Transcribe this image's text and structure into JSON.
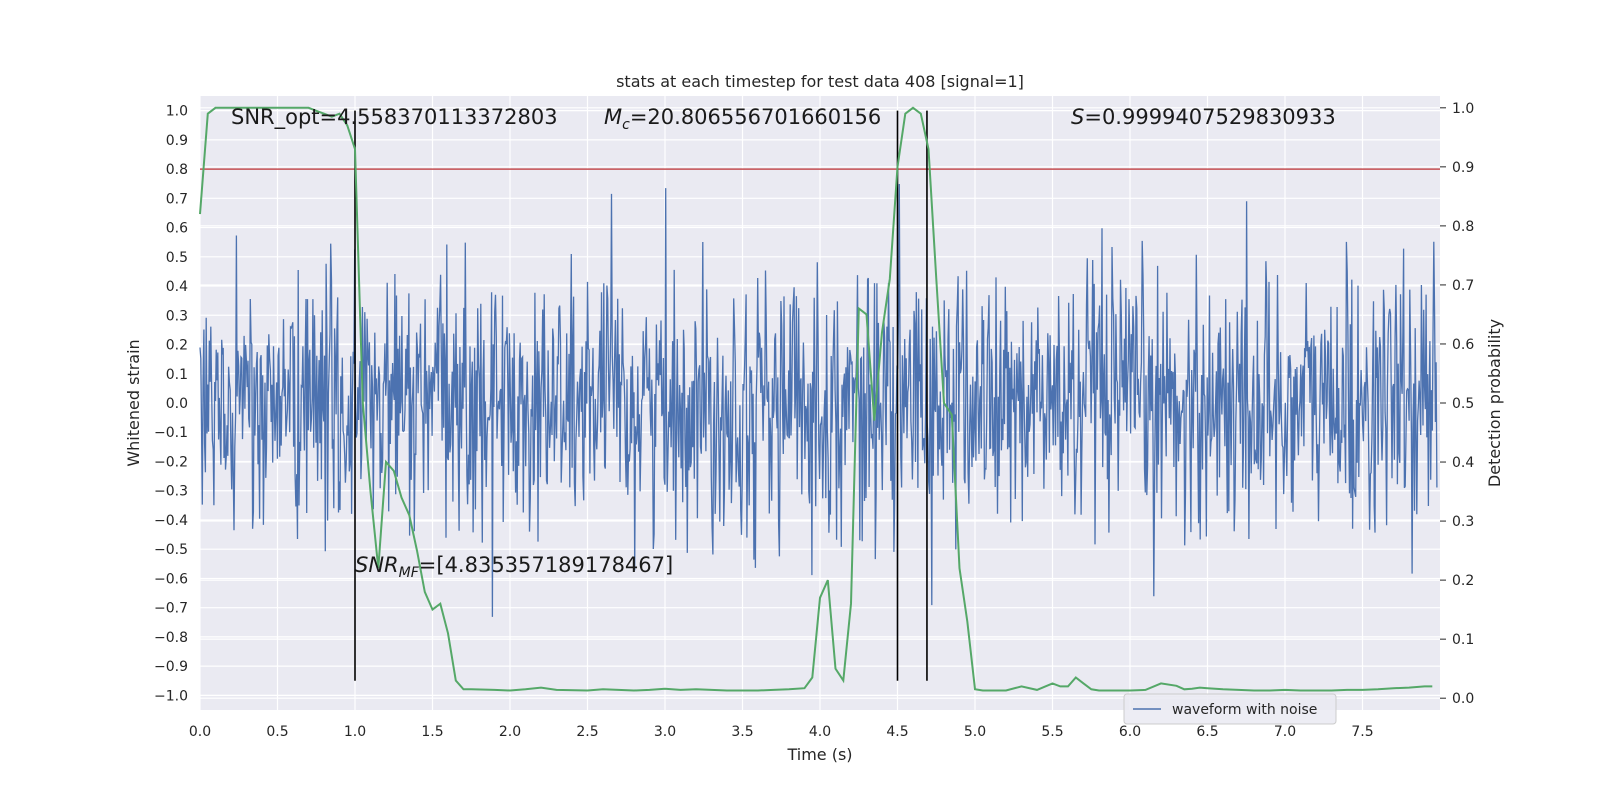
{
  "chart_data": {
    "type": "line",
    "title": "stats at each timestep for test data 408 [signal=1]",
    "xlabel": "Time (s)",
    "ylabel": "Whitened strain",
    "y2label": "Detection probability",
    "xlim": [
      0.0,
      8.0
    ],
    "ylim": [
      -1.05,
      1.05
    ],
    "y2lim": [
      -0.02,
      1.02
    ],
    "xticks": [
      "0.0",
      "0.5",
      "1.0",
      "1.5",
      "2.0",
      "2.5",
      "3.0",
      "3.5",
      "4.0",
      "4.5",
      "5.0",
      "5.5",
      "6.0",
      "6.5",
      "7.0",
      "7.5"
    ],
    "yticks": [
      "1.0",
      "0.9",
      "0.8",
      "0.7",
      "0.6",
      "0.5",
      "0.4",
      "0.3",
      "0.2",
      "0.1",
      "0.0",
      "−0.1",
      "−0.2",
      "−0.3",
      "−0.4",
      "−0.5",
      "−0.6",
      "−0.7",
      "−0.8",
      "−0.9",
      "−1.0"
    ],
    "y2ticks": [
      "1.0",
      "0.9",
      "0.8",
      "0.7",
      "0.6",
      "0.5",
      "0.4",
      "0.3",
      "0.2",
      "0.1",
      "0.0"
    ],
    "grid": true,
    "legend_placement": "lower-right",
    "legend": [
      "waveform with noise"
    ],
    "threshold": 0.8,
    "vlines": [
      1.0,
      4.5,
      4.69
    ],
    "annotations": {
      "snr_opt": "SNR_opt=4.558370113372803",
      "mc_symbol": "M",
      "mc_sub": "c",
      "mc_value": "=20.806556701660156",
      "s_symbol": "S",
      "s_value": "=0.9999407529830933",
      "snr_mf_symbol": "SNR",
      "snr_mf_sub": "MF",
      "snr_mf_value": "=[4.835357189178467]"
    },
    "series": [
      {
        "name": "waveform with noise",
        "color": "#4c72b0",
        "kind": "noise",
        "t_range": [
          0.0,
          7.98
        ]
      },
      {
        "color": "#55a868",
        "axis": "right",
        "x": [
          0.0,
          0.05,
          0.1,
          0.2,
          0.3,
          0.5,
          0.7,
          0.75,
          0.8,
          0.85,
          0.9,
          0.95,
          1.0,
          1.05,
          1.1,
          1.15,
          1.2,
          1.25,
          1.3,
          1.35,
          1.4,
          1.45,
          1.5,
          1.55,
          1.6,
          1.65,
          1.7,
          1.75,
          1.9,
          2.0,
          2.1,
          2.2,
          2.3,
          2.5,
          2.6,
          2.7,
          2.8,
          2.9,
          3.0,
          3.1,
          3.2,
          3.3,
          3.4,
          3.5,
          3.6,
          3.7,
          3.8,
          3.9,
          3.95,
          4.0,
          4.05,
          4.1,
          4.15,
          4.2,
          4.25,
          4.3,
          4.35,
          4.4,
          4.45,
          4.5,
          4.55,
          4.6,
          4.65,
          4.7,
          4.75,
          4.8,
          4.85,
          4.9,
          4.95,
          5.0,
          5.05,
          5.2,
          5.3,
          5.4,
          5.5,
          5.55,
          5.6,
          5.65,
          5.7,
          5.75,
          5.8,
          5.85,
          5.9,
          6.0,
          6.1,
          6.2,
          6.3,
          6.35,
          6.4,
          6.45,
          6.5,
          6.6,
          6.7,
          6.8,
          6.9,
          7.0,
          7.1,
          7.2,
          7.3,
          7.4,
          7.5,
          7.6,
          7.7,
          7.8,
          7.9,
          7.95
        ],
        "y": [
          0.82,
          0.99,
          1.0,
          1.0,
          1.0,
          1.0,
          1.0,
          0.995,
          0.99,
          0.985,
          0.99,
          0.97,
          0.93,
          0.5,
          0.35,
          0.22,
          0.4,
          0.385,
          0.34,
          0.31,
          0.25,
          0.18,
          0.15,
          0.16,
          0.11,
          0.03,
          0.015,
          0.015,
          0.014,
          0.013,
          0.015,
          0.018,
          0.014,
          0.013,
          0.015,
          0.014,
          0.013,
          0.014,
          0.016,
          0.014,
          0.015,
          0.014,
          0.013,
          0.013,
          0.013,
          0.014,
          0.015,
          0.017,
          0.035,
          0.17,
          0.2,
          0.05,
          0.03,
          0.16,
          0.66,
          0.65,
          0.47,
          0.62,
          0.71,
          0.9,
          0.99,
          1.0,
          0.99,
          0.93,
          0.71,
          0.5,
          0.48,
          0.22,
          0.13,
          0.015,
          0.013,
          0.013,
          0.02,
          0.014,
          0.025,
          0.02,
          0.02,
          0.035,
          0.025,
          0.015,
          0.013,
          0.013,
          0.013,
          0.013,
          0.014,
          0.025,
          0.021,
          0.015,
          0.016,
          0.018,
          0.017,
          0.015,
          0.014,
          0.013,
          0.013,
          0.014,
          0.013,
          0.013,
          0.013,
          0.014,
          0.014,
          0.015,
          0.017,
          0.018,
          0.02,
          0.02
        ]
      }
    ]
  },
  "legend_entry_color": "#4c72b0",
  "threshold_color": "#c44e52",
  "background_color": "#eaeaf2"
}
